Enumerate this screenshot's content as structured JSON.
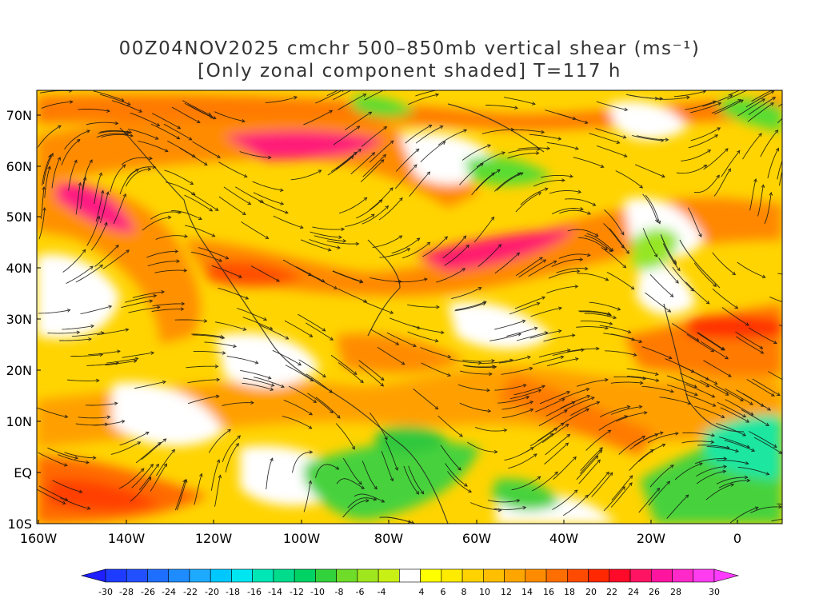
{
  "title": {
    "line1": "00Z04NOV2025 cmchr 500–850mb vertical shear (ms⁻¹)",
    "line2": "[Only zonal component shaded] T=117 h"
  },
  "lat_labels": [
    "70N",
    "60N",
    "50N",
    "40N",
    "30N",
    "20N",
    "10N",
    "EQ",
    "10S"
  ],
  "lon_labels": [
    "160W",
    "140W",
    "120W",
    "100W",
    "80W",
    "60W",
    "40W",
    "20W",
    "0"
  ],
  "colorbar": {
    "ticks": [
      "-30",
      "-28",
      "-26",
      "-24",
      "-22",
      "-20",
      "-18",
      "-16",
      "-14",
      "-12",
      "-10",
      "-8",
      "-6",
      "-4",
      "4",
      "6",
      "8",
      "10",
      "12",
      "14",
      "16",
      "18",
      "20",
      "22",
      "24",
      "26",
      "28",
      "30"
    ],
    "colors": [
      "#1e3cff",
      "#2350ff",
      "#1e6eff",
      "#1e8cff",
      "#1eaaff",
      "#00c8ff",
      "#00e6f0",
      "#00e6b4",
      "#00dc8c",
      "#00d264",
      "#32d23c",
      "#6edc28",
      "#a0e61e",
      "#c8f014",
      "#ffffff",
      "#ffff00",
      "#ffeb00",
      "#ffd200",
      "#ffbe00",
      "#ffa500",
      "#ff8c00",
      "#ff6e00",
      "#ff4b00",
      "#ff2800",
      "#ff0a28",
      "#ff1464",
      "#ff14a0",
      "#ff28c8",
      "#ff3cf0"
    ],
    "low_end_color": "#1e1eff",
    "high_end_color": "#ff3cff"
  }
}
